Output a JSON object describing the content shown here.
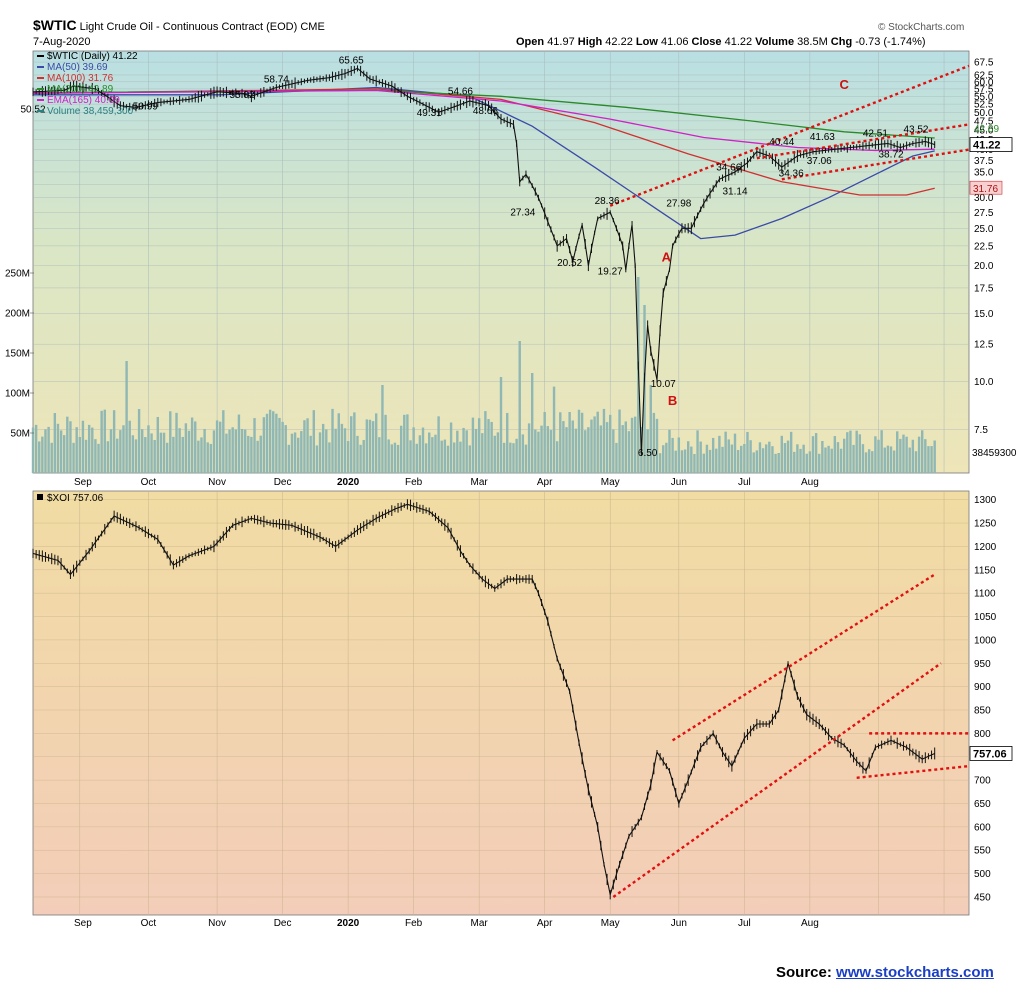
{
  "header": {
    "symbol": "$WTIC",
    "description": "Light Crude Oil - Continuous Contract (EOD)",
    "exchange": "CME",
    "date": "7-Aug-2020",
    "watermark": "© StockCharts.com",
    "open_label": "Open",
    "open": "41.97",
    "high_label": "High",
    "high": "42.22",
    "low_label": "Low",
    "low": "41.06",
    "close_label": "Close",
    "close": "41.22",
    "volume_label": "Volume",
    "volume": "38.5M",
    "chg_label": "Chg",
    "chg": "-0.73 (-1.74%)"
  },
  "legend_top": [
    {
      "text": "$WTIC (Daily) 41.22",
      "color": "#000000"
    },
    {
      "text": "MA(50) 39.69",
      "color": "#3a4aa8"
    },
    {
      "text": "MA(100) 31.76",
      "color": "#d03030"
    },
    {
      "text": "MA(200) 42.89",
      "color": "#2a8a2a"
    },
    {
      "text": "EMA(165) 40.09",
      "color": "#d020c8"
    },
    {
      "text": "Volume 38,459,300",
      "color": "#2a7f7f"
    }
  ],
  "legend_bottom": {
    "text": "$XOI 757.06",
    "color": "#000000"
  },
  "source": {
    "label": "Source:",
    "link": "www.stockcharts.com"
  },
  "chart_data": [
    {
      "type": "line",
      "name": "WTIC price panel",
      "y_scale": "log",
      "ylim": [
        6,
        70
      ],
      "y_ticks": [
        7.5,
        10.0,
        12.5,
        15.0,
        17.5,
        20.0,
        22.5,
        25.0,
        27.5,
        30.0,
        32.5,
        35.0,
        37.5,
        40.0,
        42.5,
        45.0,
        47.5,
        50.0,
        52.5,
        55.0,
        57.5,
        60.0,
        62.5,
        67.5
      ],
      "x_labels": [
        "Sep",
        "Oct",
        "Nov",
        "Dec",
        "2020",
        "Feb",
        "Mar",
        "Apr",
        "May",
        "Jun",
        "Jul",
        "Aug"
      ],
      "last_value": 41.22,
      "price": [
        {
          "t": 0,
          "v": 56.5
        },
        {
          "t": 10,
          "v": 57.0
        },
        {
          "t": 13,
          "v": 58.5
        },
        {
          "t": 20,
          "v": 57.5
        },
        {
          "t": 28,
          "v": 52.0
        },
        {
          "t": 33,
          "v": 51.5
        },
        {
          "t": 40,
          "v": 53.0
        },
        {
          "t": 50,
          "v": 54.0
        },
        {
          "t": 59,
          "v": 56.5
        },
        {
          "t": 67,
          "v": 56.0
        },
        {
          "t": 70,
          "v": 55.0
        },
        {
          "t": 78,
          "v": 58.0
        },
        {
          "t": 88,
          "v": 60.5
        },
        {
          "t": 95,
          "v": 61.5
        },
        {
          "t": 100,
          "v": 63.0
        },
        {
          "t": 104,
          "v": 65.0
        },
        {
          "t": 108,
          "v": 61.0
        },
        {
          "t": 115,
          "v": 58.5
        },
        {
          "t": 120,
          "v": 55.0
        },
        {
          "t": 125,
          "v": 52.5
        },
        {
          "t": 130,
          "v": 50.0
        },
        {
          "t": 136,
          "v": 52.0
        },
        {
          "t": 140,
          "v": 53.5
        },
        {
          "t": 146,
          "v": 52.0
        },
        {
          "t": 150,
          "v": 48.0
        },
        {
          "t": 154,
          "v": 46.5
        },
        {
          "t": 155,
          "v": 41.5
        },
        {
          "t": 156,
          "v": 33.0
        },
        {
          "t": 158,
          "v": 34.5
        },
        {
          "t": 162,
          "v": 30.0
        },
        {
          "t": 165,
          "v": 26.0
        },
        {
          "t": 168,
          "v": 22.5
        },
        {
          "t": 171,
          "v": 23.5
        },
        {
          "t": 173,
          "v": 20.5
        },
        {
          "t": 176,
          "v": 25.5
        },
        {
          "t": 178,
          "v": 20.0
        },
        {
          "t": 181,
          "v": 26.5
        },
        {
          "t": 185,
          "v": 27.5
        },
        {
          "t": 189,
          "v": 22.5
        },
        {
          "t": 190,
          "v": 19.5
        },
        {
          "t": 192,
          "v": 25.5
        },
        {
          "t": 193,
          "v": 20.0
        },
        {
          "t": 194,
          "v": 11.0
        },
        {
          "t": 195,
          "v": 6.5
        },
        {
          "t": 197,
          "v": 14.0
        },
        {
          "t": 198,
          "v": 12.0
        },
        {
          "t": 200,
          "v": 10.1
        },
        {
          "t": 202,
          "v": 17.0
        },
        {
          "t": 204,
          "v": 19.5
        },
        {
          "t": 205,
          "v": 22.5
        },
        {
          "t": 208,
          "v": 25.0
        },
        {
          "t": 211,
          "v": 25.0
        },
        {
          "t": 215,
          "v": 29.0
        },
        {
          "t": 220,
          "v": 33.5
        },
        {
          "t": 225,
          "v": 35.0
        },
        {
          "t": 229,
          "v": 37.0
        },
        {
          "t": 232,
          "v": 39.5
        },
        {
          "t": 236,
          "v": 38.5
        },
        {
          "t": 240,
          "v": 36.0
        },
        {
          "t": 245,
          "v": 38.5
        },
        {
          "t": 250,
          "v": 39.5
        },
        {
          "t": 256,
          "v": 40.0
        },
        {
          "t": 262,
          "v": 40.5
        },
        {
          "t": 268,
          "v": 41.0
        },
        {
          "t": 274,
          "v": 41.5
        },
        {
          "t": 278,
          "v": 40.5
        },
        {
          "t": 282,
          "v": 41.5
        },
        {
          "t": 286,
          "v": 42.0
        },
        {
          "t": 289,
          "v": 41.22
        }
      ],
      "overlays": [
        {
          "color": "#3a4aa8",
          "points": [
            {
              "t": 0,
              "v": 55.5
            },
            {
              "t": 60,
              "v": 55.5
            },
            {
              "t": 110,
              "v": 58.0
            },
            {
              "t": 140,
              "v": 55.0
            },
            {
              "t": 160,
              "v": 46.0
            },
            {
              "t": 180,
              "v": 36.0
            },
            {
              "t": 200,
              "v": 28.0
            },
            {
              "t": 214,
              "v": 23.5
            },
            {
              "t": 225,
              "v": 24.0
            },
            {
              "t": 240,
              "v": 26.5
            },
            {
              "t": 255,
              "v": 30.0
            },
            {
              "t": 270,
              "v": 34.5
            },
            {
              "t": 282,
              "v": 38.5
            },
            {
              "t": 289,
              "v": 39.69
            }
          ]
        },
        {
          "color": "#d03030",
          "points": [
            {
              "t": 0,
              "v": 56.0
            },
            {
              "t": 110,
              "v": 57.5
            },
            {
              "t": 150,
              "v": 54.0
            },
            {
              "t": 180,
              "v": 47.0
            },
            {
              "t": 210,
              "v": 39.0
            },
            {
              "t": 240,
              "v": 33.0
            },
            {
              "t": 265,
              "v": 30.5
            },
            {
              "t": 280,
              "v": 30.5
            },
            {
              "t": 289,
              "v": 31.76
            }
          ]
        },
        {
          "color": "#2a8a2a",
          "points": [
            {
              "t": 0,
              "v": 56.2
            },
            {
              "t": 110,
              "v": 57.0
            },
            {
              "t": 150,
              "v": 55.0
            },
            {
              "t": 190,
              "v": 51.5
            },
            {
              "t": 230,
              "v": 47.5
            },
            {
              "t": 260,
              "v": 44.5
            },
            {
              "t": 289,
              "v": 42.89
            }
          ]
        },
        {
          "color": "#d020c8",
          "points": [
            {
              "t": 0,
              "v": 56.0
            },
            {
              "t": 110,
              "v": 57.0
            },
            {
              "t": 150,
              "v": 53.5
            },
            {
              "t": 185,
              "v": 48.0
            },
            {
              "t": 215,
              "v": 43.0
            },
            {
              "t": 245,
              "v": 40.5
            },
            {
              "t": 270,
              "v": 39.8
            },
            {
              "t": 289,
              "v": 40.09
            }
          ]
        }
      ],
      "annotations": [
        {
          "text": "65.65",
          "t": 102,
          "v": 65.65
        },
        {
          "text": "58.74",
          "t": 78,
          "v": 58.74
        },
        {
          "text": "55.02",
          "t": 67,
          "v": 53.5
        },
        {
          "text": "50.99",
          "t": 36,
          "v": 50.0
        },
        {
          "text": "50.52",
          "t": 0,
          "v": 49.0
        },
        {
          "text": "54.66",
          "t": 137,
          "v": 54.66
        },
        {
          "text": "48.66",
          "t": 145,
          "v": 48.66
        },
        {
          "text": "49.31",
          "t": 127,
          "v": 48.0
        },
        {
          "text": "27.34",
          "t": 157,
          "v": 26.5
        },
        {
          "text": "20.52",
          "t": 172,
          "v": 19.6
        },
        {
          "text": "19.27",
          "t": 185,
          "v": 18.6
        },
        {
          "text": "28.36",
          "t": 184,
          "v": 28.36
        },
        {
          "text": "27.98",
          "t": 207,
          "v": 27.98
        },
        {
          "text": "10.07",
          "t": 202,
          "v": 9.5
        },
        {
          "text": "6.50",
          "t": 197,
          "v": 6.3
        },
        {
          "text": "34.66",
          "t": 223,
          "v": 34.66
        },
        {
          "text": "31.14",
          "t": 225,
          "v": 30.0
        },
        {
          "text": "40.44",
          "t": 240,
          "v": 40.44
        },
        {
          "text": "34.36",
          "t": 243,
          "v": 33.5
        },
        {
          "text": "37.06",
          "t": 252,
          "v": 36.0
        },
        {
          "text": "41.63",
          "t": 253,
          "v": 41.63
        },
        {
          "text": "42.51",
          "t": 270,
          "v": 42.51
        },
        {
          "text": "43.52",
          "t": 283,
          "v": 43.52
        },
        {
          "text": "38.72",
          "t": 275,
          "v": 37.5
        }
      ],
      "wave_labels": [
        {
          "text": "A",
          "t": 203,
          "v": 20.5
        },
        {
          "text": "B",
          "t": 205,
          "v": 8.7
        },
        {
          "text": "C",
          "t": 260,
          "v": 57.5
        }
      ],
      "trendlines": [
        {
          "from": {
            "t": 185,
            "v": 28.6
          },
          "to": {
            "t": 300,
            "v": 66.0
          }
        },
        {
          "from": {
            "t": 232,
            "v": 38.0
          },
          "to": {
            "t": 300,
            "v": 46.5
          }
        },
        {
          "from": {
            "t": 240,
            "v": 33.5
          },
          "to": {
            "t": 300,
            "v": 40.0
          }
        }
      ],
      "price_tag": "41.22",
      "ma_tags": [
        "42.89",
        "31.76"
      ],
      "volume": {
        "ticks": [
          "250M",
          "200M",
          "150M",
          "100M",
          "50M"
        ],
        "tick_values": [
          250,
          200,
          150,
          100,
          50
        ],
        "ylim": [
          0,
          300
        ],
        "last_label": "38459300",
        "spikes": [
          {
            "t": 30,
            "v": 140
          },
          {
            "t": 112,
            "v": 110
          },
          {
            "t": 150,
            "v": 120
          },
          {
            "t": 156,
            "v": 165
          },
          {
            "t": 160,
            "v": 125
          },
          {
            "t": 167,
            "v": 108
          },
          {
            "t": 194,
            "v": 245
          },
          {
            "t": 196,
            "v": 210
          },
          {
            "t": 198,
            "v": 110
          }
        ],
        "baseline": 62,
        "late_baseline": 42
      }
    },
    {
      "type": "line",
      "name": "XOI panel",
      "ylim": [
        420,
        1310
      ],
      "y_ticks": [
        450,
        500,
        550,
        600,
        650,
        700,
        750,
        800,
        850,
        900,
        950,
        1000,
        1050,
        1100,
        1150,
        1200,
        1250,
        1300
      ],
      "x_labels": [
        "Sep",
        "Oct",
        "Nov",
        "Dec",
        "2020",
        "Feb",
        "Mar",
        "Apr",
        "May",
        "Jun",
        "Jul",
        "Aug"
      ],
      "last_value": 757.06,
      "price": [
        {
          "t": 0,
          "v": 1185
        },
        {
          "t": 8,
          "v": 1170
        },
        {
          "t": 12,
          "v": 1140
        },
        {
          "t": 18,
          "v": 1190
        },
        {
          "t": 26,
          "v": 1265
        },
        {
          "t": 34,
          "v": 1240
        },
        {
          "t": 40,
          "v": 1215
        },
        {
          "t": 45,
          "v": 1160
        },
        {
          "t": 50,
          "v": 1180
        },
        {
          "t": 58,
          "v": 1200
        },
        {
          "t": 64,
          "v": 1245
        },
        {
          "t": 70,
          "v": 1260
        },
        {
          "t": 76,
          "v": 1250
        },
        {
          "t": 83,
          "v": 1245
        },
        {
          "t": 92,
          "v": 1220
        },
        {
          "t": 97,
          "v": 1200
        },
        {
          "t": 104,
          "v": 1235
        },
        {
          "t": 110,
          "v": 1260
        },
        {
          "t": 116,
          "v": 1280
        },
        {
          "t": 120,
          "v": 1290
        },
        {
          "t": 127,
          "v": 1275
        },
        {
          "t": 133,
          "v": 1240
        },
        {
          "t": 137,
          "v": 1190
        },
        {
          "t": 140,
          "v": 1160
        },
        {
          "t": 144,
          "v": 1130
        },
        {
          "t": 148,
          "v": 1110
        },
        {
          "t": 152,
          "v": 1130
        },
        {
          "t": 160,
          "v": 1130
        },
        {
          "t": 162,
          "v": 1100
        },
        {
          "t": 165,
          "v": 1040
        },
        {
          "t": 168,
          "v": 960
        },
        {
          "t": 172,
          "v": 890
        },
        {
          "t": 175,
          "v": 780
        },
        {
          "t": 178,
          "v": 680
        },
        {
          "t": 181,
          "v": 600
        },
        {
          "t": 183,
          "v": 520
        },
        {
          "t": 185,
          "v": 455
        },
        {
          "t": 188,
          "v": 520
        },
        {
          "t": 191,
          "v": 580
        },
        {
          "t": 195,
          "v": 620
        },
        {
          "t": 198,
          "v": 690
        },
        {
          "t": 200,
          "v": 760
        },
        {
          "t": 204,
          "v": 720
        },
        {
          "t": 207,
          "v": 650
        },
        {
          "t": 210,
          "v": 700
        },
        {
          "t": 214,
          "v": 770
        },
        {
          "t": 218,
          "v": 800
        },
        {
          "t": 221,
          "v": 760
        },
        {
          "t": 224,
          "v": 730
        },
        {
          "t": 228,
          "v": 790
        },
        {
          "t": 232,
          "v": 820
        },
        {
          "t": 236,
          "v": 820
        },
        {
          "t": 239,
          "v": 850
        },
        {
          "t": 242,
          "v": 950
        },
        {
          "t": 245,
          "v": 880
        },
        {
          "t": 248,
          "v": 840
        },
        {
          "t": 252,
          "v": 820
        },
        {
          "t": 256,
          "v": 790
        },
        {
          "t": 260,
          "v": 775
        },
        {
          "t": 264,
          "v": 740
        },
        {
          "t": 267,
          "v": 720
        },
        {
          "t": 270,
          "v": 770
        },
        {
          "t": 275,
          "v": 785
        },
        {
          "t": 280,
          "v": 770
        },
        {
          "t": 285,
          "v": 745
        },
        {
          "t": 289,
          "v": 757.06
        }
      ],
      "trendlines": [
        {
          "from": {
            "t": 186,
            "v": 450
          },
          "to": {
            "t": 291,
            "v": 950
          }
        },
        {
          "from": {
            "t": 205,
            "v": 785
          },
          "to": {
            "t": 289,
            "v": 1140
          }
        },
        {
          "from": {
            "t": 268,
            "v": 800
          },
          "to": {
            "t": 300,
            "v": 800
          }
        },
        {
          "from": {
            "t": 264,
            "v": 705
          },
          "to": {
            "t": 300,
            "v": 730
          }
        }
      ],
      "price_tag": "757.06"
    }
  ]
}
